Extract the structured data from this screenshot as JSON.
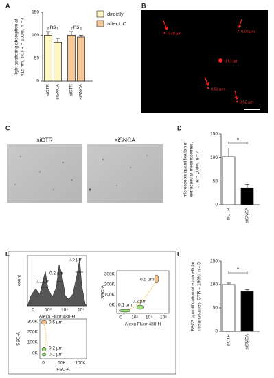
{
  "chart_data": [
    {
      "type": "bar",
      "panel": "A",
      "ylabel": [
        "light scattering absorption at",
        "415 nm, siCTR = 100%, n = 4"
      ],
      "categories": [
        "siCTR",
        "siSNCA"
      ],
      "series": [
        {
          "name": "directly",
          "color": "#fff7c2",
          "values": [
            100,
            85
          ],
          "errors": [
            8,
            8
          ]
        },
        {
          "name": "after UC",
          "color": "#f6c897",
          "values": [
            100,
            96
          ],
          "errors": [
            8,
            4
          ]
        }
      ],
      "ylim": [
        0,
        150
      ],
      "yticks": [
        0,
        50,
        100,
        150
      ],
      "annotations": [
        "ns",
        "ns"
      ]
    },
    {
      "type": "bar",
      "panel": "D",
      "ylabel": [
        "microscopic quantification of",
        "extracellular melanosomes,",
        "CTR = 100%, n = 4"
      ],
      "categories": [
        "siCTR",
        "siSNCA"
      ],
      "values": [
        102,
        36
      ],
      "errors": [
        18,
        7
      ],
      "colors": [
        "#ffffff",
        "#000000"
      ],
      "ylim": [
        0,
        150
      ],
      "yticks": [
        0,
        50,
        100,
        150
      ],
      "annotations": [
        "*"
      ]
    },
    {
      "type": "bar",
      "panel": "F",
      "ylabel": [
        "FACS quantification of extracellular",
        "melanosomes, CTR = 100%, n = 5"
      ],
      "categories": [
        "siCTR",
        "siSNCA"
      ],
      "values": [
        100,
        85
      ],
      "errors": [
        3,
        4
      ],
      "colors": [
        "#ffffff",
        "#000000"
      ],
      "ylim": [
        0,
        150
      ],
      "yticks": [
        0,
        50,
        100,
        150
      ],
      "annotations": [
        "*"
      ]
    }
  ],
  "panel_b": {
    "panel": "B",
    "labels": [
      "0.48 µm",
      "0.02 µm",
      "0.61 µm",
      "0.52 µm",
      "0.52 µm"
    ]
  },
  "panel_c": {
    "panel": "C",
    "images": [
      "siCTR",
      "siSNCA"
    ]
  },
  "panel_e": {
    "panel": "E",
    "histogram": {
      "ylabel": "count",
      "xlabel": "Alexa Fluor 488-H",
      "xticks": [
        "0",
        "10³",
        "10⁴",
        "10⁵"
      ],
      "gates": [
        "0.5 µm",
        "0.2 µm",
        "0.1 µm"
      ]
    },
    "ssc_vs_alexa": {
      "ylabel": "SSC-A",
      "yticks": [
        "300K",
        "200K",
        "100K",
        "0K"
      ],
      "xticks": [
        "0",
        "10³",
        "10⁴",
        "10⁵"
      ],
      "xlabel": "Alexa Fluor 488-H",
      "gates": [
        "0.5 µm",
        "0.2 µm",
        "0.1 µm"
      ]
    },
    "ssc_vs_fsc": {
      "ylabel": "SSC-A",
      "yticks": [
        "300K",
        "200K",
        "100K",
        "0K"
      ],
      "xticks": [
        "0",
        "50K",
        "100K"
      ],
      "xlabel": "FSC-A",
      "gates": [
        "0.5 µm",
        "0.2 µm",
        "0.1 µm"
      ]
    }
  }
}
